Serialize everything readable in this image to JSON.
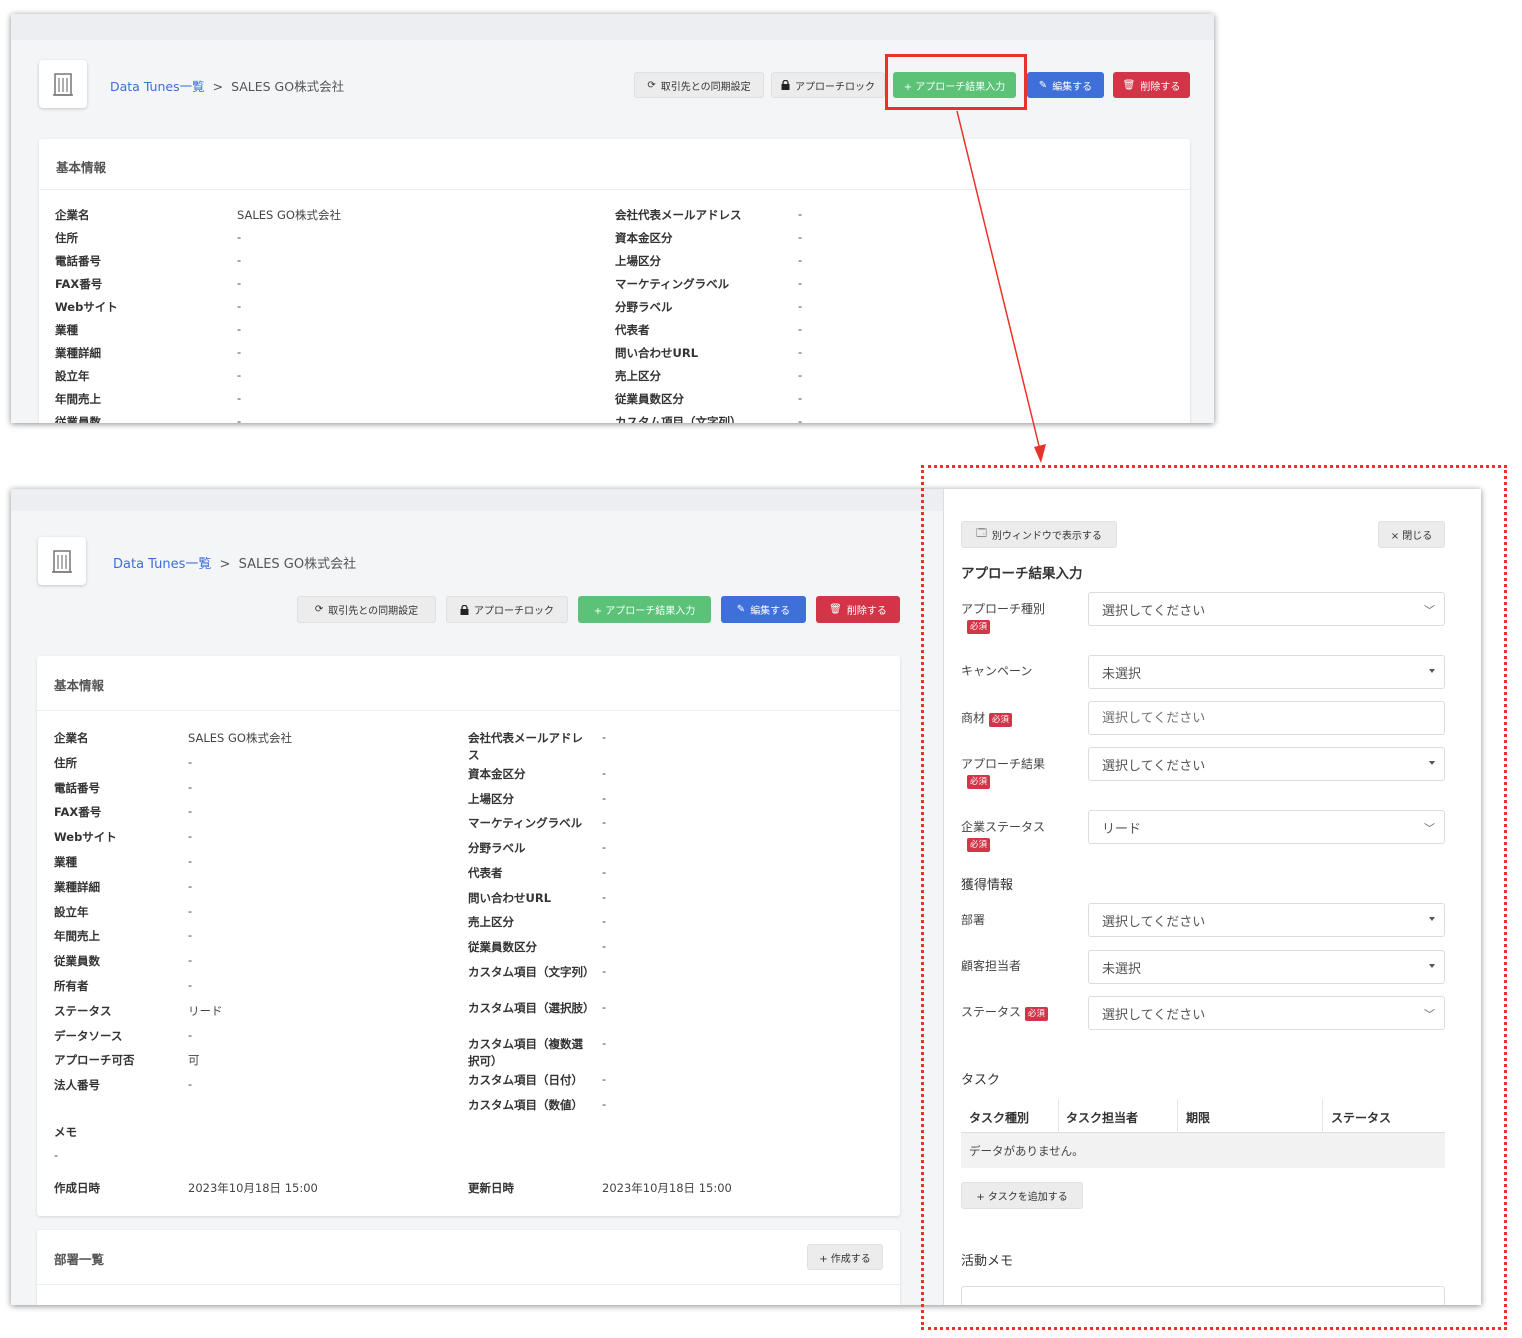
{
  "breadcrumb": {
    "link": "Data Tunes一覧",
    "sep": ">",
    "current": "SALES GO株式会社"
  },
  "toolbar": {
    "sync": "取引先との同期設定",
    "lock": "アプローチロック",
    "approach_input": "+ アプローチ結果入力",
    "edit": "編集する",
    "delete": "削除する"
  },
  "basic_info": {
    "title": "基本情報",
    "left_fields": [
      {
        "label": "企業名",
        "value": "SALES GO株式会社"
      },
      {
        "label": "住所",
        "value": "-"
      },
      {
        "label": "電話番号",
        "value": "-"
      },
      {
        "label": "FAX番号",
        "value": "-"
      },
      {
        "label": "Webサイト",
        "value": "-"
      },
      {
        "label": "業種",
        "value": "-"
      },
      {
        "label": "業種詳細",
        "value": "-"
      },
      {
        "label": "設立年",
        "value": "-"
      },
      {
        "label": "年間売上",
        "value": "-"
      },
      {
        "label": "従業員数",
        "value": "-"
      },
      {
        "label": "所有者",
        "value": "-"
      },
      {
        "label": "ステータス",
        "value": "リード"
      },
      {
        "label": "データソース",
        "value": "-"
      },
      {
        "label": "アプローチ可否",
        "value": "可"
      },
      {
        "label": "法人番号",
        "value": "-"
      }
    ],
    "right_fields": [
      {
        "label": "会社代表メールアドレス",
        "value": "-"
      },
      {
        "label": "資本金区分",
        "value": "-"
      },
      {
        "label": "上場区分",
        "value": "-"
      },
      {
        "label": "マーケティングラベル",
        "value": "-"
      },
      {
        "label": "分野ラベル",
        "value": "-"
      },
      {
        "label": "代表者",
        "value": "-"
      },
      {
        "label": "問い合わせURL",
        "value": "-"
      },
      {
        "label": "売上区分",
        "value": "-"
      },
      {
        "label": "従業員数区分",
        "value": "-"
      },
      {
        "label": "カスタム項目（文字列）",
        "value": "-"
      },
      {
        "label": "カスタム項目（選択肢）",
        "value": "-"
      },
      {
        "label": "カスタム項目（複数選択可）",
        "value": "-"
      },
      {
        "label": "カスタム項目（日付）",
        "value": "-"
      },
      {
        "label": "カスタム項目（数値）",
        "value": "-"
      }
    ],
    "memo_label": "メモ",
    "memo_value": "-",
    "created_label": "作成日時",
    "created_value": "2023年10月18日 15:00",
    "updated_label": "更新日時",
    "updated_value": "2023年10月18日 15:00"
  },
  "dept": {
    "title": "部署一覧",
    "create": "+ 作成する"
  },
  "panel": {
    "open_window": "別ウィンドウで表示する",
    "close": "× 閉じる",
    "title": "アプローチ結果入力",
    "required_badge": "必須",
    "approach_type": {
      "label": "アプローチ種別",
      "value": "選択してください"
    },
    "campaign": {
      "label": "キャンペーン",
      "value": "未選択"
    },
    "material": {
      "label": "商材",
      "placeholder": "選択してください"
    },
    "approach_result": {
      "label": "アプローチ結果",
      "value": "選択してください"
    },
    "company_status": {
      "label": "企業ステータス",
      "value": "リード"
    },
    "acquired_title": "獲得情報",
    "department": {
      "label": "部署",
      "value": "選択してください"
    },
    "contact": {
      "label": "顧客担当者",
      "value": "未選択"
    },
    "status": {
      "label": "ステータス",
      "value": "選択してください"
    },
    "task_title": "タスク",
    "task_columns": [
      "タスク種別",
      "タスク担当者",
      "期限",
      "ステータス"
    ],
    "task_empty": "データがありません。",
    "add_task": "+ タスクを追加する",
    "memo_title": "活動メモ"
  }
}
